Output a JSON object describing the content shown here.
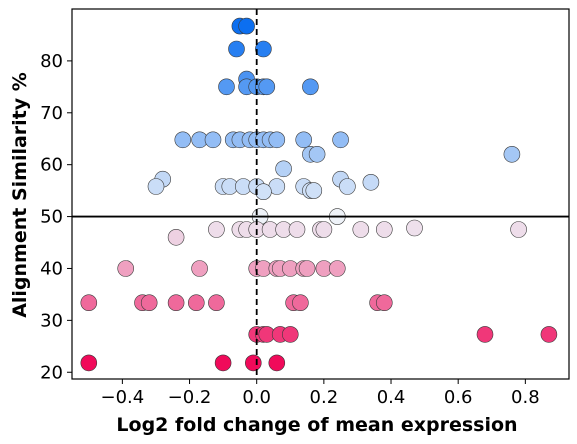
{
  "chart_data": {
    "type": "scatter",
    "xlabel": "Log2 fold change of mean expression",
    "ylabel": "Alignment Similarity %",
    "xlim": [
      -0.55,
      0.93
    ],
    "ylim": [
      18.7,
      90
    ],
    "x_ticks": [
      -0.4,
      -0.2,
      0.0,
      0.2,
      0.4,
      0.6,
      0.8
    ],
    "x_tick_labels": [
      "−0.4",
      "−0.2",
      "0.0",
      "0.2",
      "0.4",
      "0.6",
      "0.8"
    ],
    "y_ticks": [
      20,
      30,
      40,
      50,
      60,
      70,
      80
    ],
    "y_tick_labels": [
      "20",
      "30",
      "40",
      "50",
      "60",
      "70",
      "80"
    ],
    "reference_lines": {
      "horizontal_y": 50,
      "vertical_x": 0
    },
    "grid": false,
    "color_low": "#f00a5a",
    "color_mid": "#eef2f8",
    "color_high": "#0a6ef0",
    "colormap_center": 50,
    "points": [
      {
        "x": -0.05,
        "y": 86.7
      },
      {
        "x": -0.03,
        "y": 86.7
      },
      {
        "x": -0.06,
        "y": 82.3
      },
      {
        "x": 0.02,
        "y": 82.3
      },
      {
        "x": -0.03,
        "y": 76.5
      },
      {
        "x": -0.09,
        "y": 75
      },
      {
        "x": -0.03,
        "y": 75
      },
      {
        "x": 0.0,
        "y": 75
      },
      {
        "x": 0.02,
        "y": 75
      },
      {
        "x": 0.03,
        "y": 75
      },
      {
        "x": 0.16,
        "y": 75
      },
      {
        "x": -0.22,
        "y": 64.8
      },
      {
        "x": -0.17,
        "y": 64.8
      },
      {
        "x": -0.13,
        "y": 64.8
      },
      {
        "x": -0.07,
        "y": 64.8
      },
      {
        "x": -0.05,
        "y": 64.8
      },
      {
        "x": -0.02,
        "y": 64.8
      },
      {
        "x": 0.0,
        "y": 64.8
      },
      {
        "x": 0.02,
        "y": 64.8
      },
      {
        "x": 0.04,
        "y": 64.8
      },
      {
        "x": 0.06,
        "y": 64.8
      },
      {
        "x": 0.14,
        "y": 64.8
      },
      {
        "x": 0.25,
        "y": 64.8
      },
      {
        "x": 0.16,
        "y": 62
      },
      {
        "x": 0.18,
        "y": 62
      },
      {
        "x": 0.76,
        "y": 62
      },
      {
        "x": 0.08,
        "y": 59.2
      },
      {
        "x": 0.25,
        "y": 57.2
      },
      {
        "x": -0.28,
        "y": 57.2
      },
      {
        "x": 0.34,
        "y": 56.6
      },
      {
        "x": -0.3,
        "y": 55.8
      },
      {
        "x": -0.1,
        "y": 55.8
      },
      {
        "x": -0.08,
        "y": 55.8
      },
      {
        "x": -0.04,
        "y": 55.8
      },
      {
        "x": 0.0,
        "y": 55.8
      },
      {
        "x": 0.06,
        "y": 55.8
      },
      {
        "x": 0.14,
        "y": 55.8
      },
      {
        "x": 0.27,
        "y": 55.8
      },
      {
        "x": 0.16,
        "y": 55
      },
      {
        "x": 0.17,
        "y": 55
      },
      {
        "x": 0.02,
        "y": 54.8
      },
      {
        "x": 0.01,
        "y": 50
      },
      {
        "x": 0.24,
        "y": 50
      },
      {
        "x": -0.12,
        "y": 47.5
      },
      {
        "x": -0.05,
        "y": 47.5
      },
      {
        "x": -0.03,
        "y": 47.5
      },
      {
        "x": 0.0,
        "y": 47.5
      },
      {
        "x": 0.04,
        "y": 47.5
      },
      {
        "x": 0.08,
        "y": 47.5
      },
      {
        "x": 0.12,
        "y": 47.5
      },
      {
        "x": 0.19,
        "y": 47.5
      },
      {
        "x": 0.2,
        "y": 47.5
      },
      {
        "x": 0.31,
        "y": 47.5
      },
      {
        "x": 0.38,
        "y": 47.5
      },
      {
        "x": 0.47,
        "y": 47.8
      },
      {
        "x": 0.78,
        "y": 47.5
      },
      {
        "x": -0.24,
        "y": 46
      },
      {
        "x": -0.39,
        "y": 40
      },
      {
        "x": -0.17,
        "y": 40
      },
      {
        "x": 0.0,
        "y": 40
      },
      {
        "x": 0.02,
        "y": 40
      },
      {
        "x": 0.06,
        "y": 40
      },
      {
        "x": 0.07,
        "y": 40
      },
      {
        "x": 0.1,
        "y": 40
      },
      {
        "x": 0.14,
        "y": 40
      },
      {
        "x": 0.15,
        "y": 40
      },
      {
        "x": 0.2,
        "y": 40
      },
      {
        "x": 0.24,
        "y": 40
      },
      {
        "x": -0.5,
        "y": 33.4
      },
      {
        "x": -0.34,
        "y": 33.4
      },
      {
        "x": -0.32,
        "y": 33.4
      },
      {
        "x": -0.24,
        "y": 33.4
      },
      {
        "x": -0.18,
        "y": 33.4
      },
      {
        "x": -0.12,
        "y": 33.4
      },
      {
        "x": 0.11,
        "y": 33.4
      },
      {
        "x": 0.13,
        "y": 33.4
      },
      {
        "x": 0.36,
        "y": 33.4
      },
      {
        "x": 0.38,
        "y": 33.4
      },
      {
        "x": 0.0,
        "y": 27.3
      },
      {
        "x": 0.02,
        "y": 27.3
      },
      {
        "x": 0.03,
        "y": 27.3
      },
      {
        "x": 0.07,
        "y": 27.3
      },
      {
        "x": 0.1,
        "y": 27.3
      },
      {
        "x": 0.68,
        "y": 27.3
      },
      {
        "x": 0.87,
        "y": 27.3
      },
      {
        "x": -0.5,
        "y": 21.8
      },
      {
        "x": -0.1,
        "y": 21.8
      },
      {
        "x": -0.01,
        "y": 21.8
      },
      {
        "x": 0.06,
        "y": 21.8
      }
    ]
  }
}
